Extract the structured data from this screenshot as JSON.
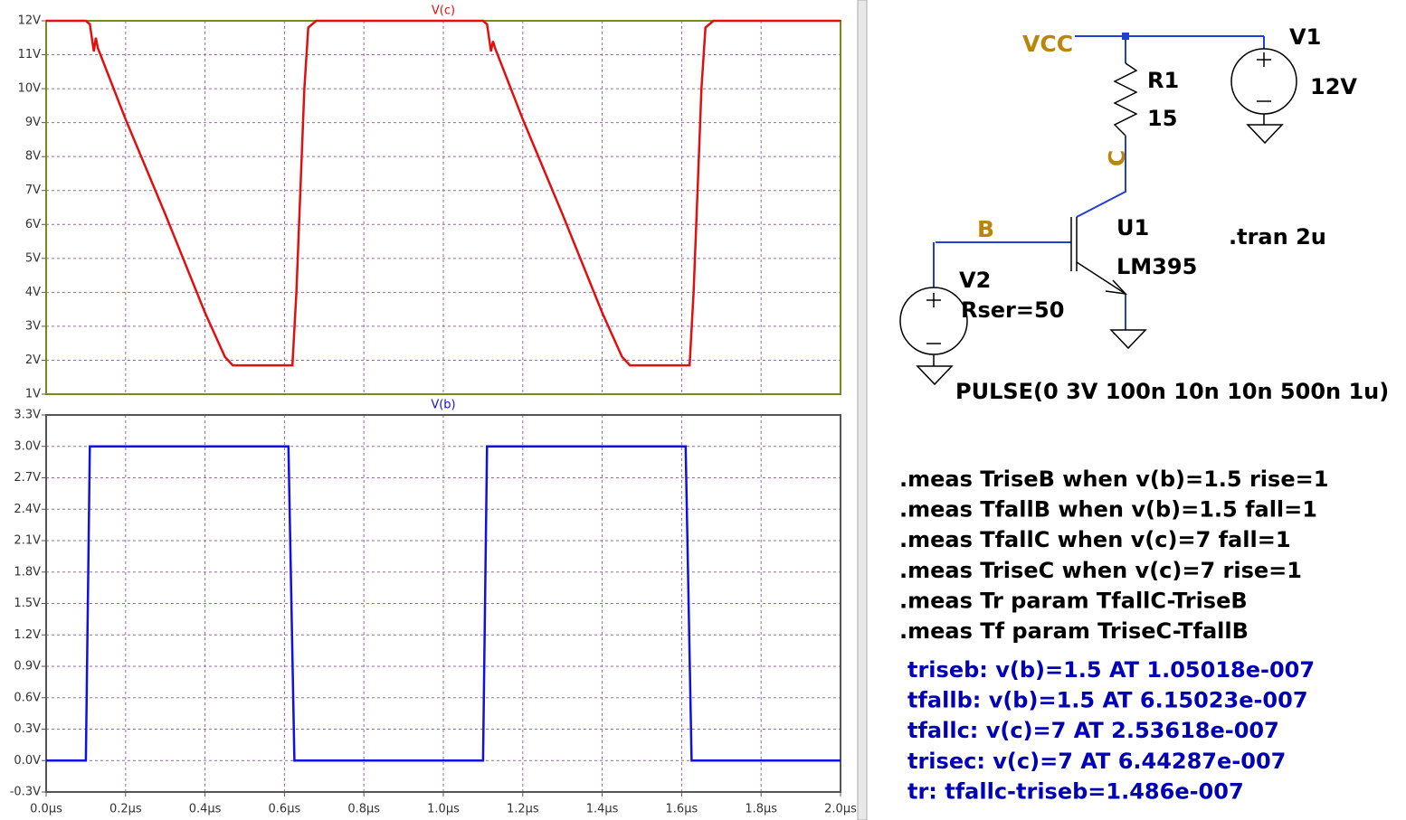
{
  "chart_data": [
    {
      "type": "line",
      "title": "V(c)",
      "color": "#e01010",
      "grid": true,
      "x": [
        0,
        0.1,
        0.11,
        0.12,
        0.125,
        0.13,
        0.2,
        0.3,
        0.4,
        0.45,
        0.47,
        0.62,
        0.63,
        0.64,
        0.65,
        0.66,
        0.68,
        1.1,
        1.11,
        1.12,
        1.125,
        1.13,
        1.2,
        1.3,
        1.4,
        1.45,
        1.47,
        1.62,
        1.63,
        1.64,
        1.65,
        1.66,
        1.68,
        2.0
      ],
      "values": [
        12,
        12,
        11.9,
        11.1,
        11.5,
        11.2,
        9.1,
        6.3,
        3.4,
        2.1,
        1.85,
        1.85,
        4,
        7,
        10,
        11.8,
        12,
        12,
        11.9,
        11.1,
        11.4,
        11.2,
        9.1,
        6.3,
        3.4,
        2.1,
        1.85,
        1.85,
        4,
        7,
        10,
        11.8,
        12,
        12
      ],
      "xlim": [
        0,
        2
      ],
      "xticks": [
        0,
        0.2,
        0.4,
        0.6,
        0.8,
        1.0,
        1.2,
        1.4,
        1.6,
        1.8,
        2.0
      ],
      "ylim": [
        1,
        12
      ],
      "yticks": [
        {
          "value": 1,
          "label": "1V"
        },
        {
          "value": 2,
          "label": "2V"
        },
        {
          "value": 3,
          "label": "3V"
        },
        {
          "value": 4,
          "label": "4V"
        },
        {
          "value": 5,
          "label": "5V"
        },
        {
          "value": 6,
          "label": "6V"
        },
        {
          "value": 7,
          "label": "7V"
        },
        {
          "value": 8,
          "label": "8V"
        },
        {
          "value": 9,
          "label": "9V"
        },
        {
          "value": 10,
          "label": "10V"
        },
        {
          "value": 11,
          "label": "11V"
        },
        {
          "value": 12,
          "label": "12V"
        }
      ]
    },
    {
      "type": "line",
      "title": "V(b)",
      "color": "#1010e0",
      "grid": true,
      "x": [
        0,
        0.1,
        0.11,
        0.61,
        0.625,
        1.1,
        1.11,
        1.61,
        1.625,
        2.0
      ],
      "values": [
        0,
        0,
        3,
        3,
        0,
        0,
        3,
        3,
        0,
        0
      ],
      "xlim": [
        0,
        2
      ],
      "xticks": [
        {
          "value": 0,
          "label": "0.0µs"
        },
        {
          "value": 0.2,
          "label": "0.2µs"
        },
        {
          "value": 0.4,
          "label": "0.4µs"
        },
        {
          "value": 0.6,
          "label": "0.6µs"
        },
        {
          "value": 0.8,
          "label": "0.8µs"
        },
        {
          "value": 1.0,
          "label": "1.0µs"
        },
        {
          "value": 1.2,
          "label": "1.2µs"
        },
        {
          "value": 1.4,
          "label": "1.4µs"
        },
        {
          "value": 1.6,
          "label": "1.6µs"
        },
        {
          "value": 1.8,
          "label": "1.8µs"
        },
        {
          "value": 2.0,
          "label": "2.0µs"
        }
      ],
      "ylim": [
        -0.3,
        3.3
      ],
      "yticks": [
        {
          "value": -0.3,
          "label": "-0.3V"
        },
        {
          "value": 0,
          "label": "0.0V"
        },
        {
          "value": 0.3,
          "label": "0.3V"
        },
        {
          "value": 0.6,
          "label": "0.6V"
        },
        {
          "value": 0.9,
          "label": "0.9V"
        },
        {
          "value": 1.2,
          "label": "1.2V"
        },
        {
          "value": 1.5,
          "label": "1.5V"
        },
        {
          "value": 1.8,
          "label": "1.8V"
        },
        {
          "value": 2.1,
          "label": "2.1V"
        },
        {
          "value": 2.4,
          "label": "2.4V"
        },
        {
          "value": 2.7,
          "label": "2.7V"
        },
        {
          "value": 3.0,
          "label": "3.0V"
        },
        {
          "value": 3.3,
          "label": "3.3V"
        }
      ]
    }
  ],
  "schematic": {
    "net_vcc": "VCC",
    "net_c": "C",
    "net_b": "B",
    "r1_name": "R1",
    "r1_value": "15",
    "v1_name": "V1",
    "v1_value": "12V",
    "u1_name": "U1",
    "u1_model": "LM395",
    "v2_name": "V2",
    "v2_rser": "Rser=50",
    "v2_value": "PULSE(0 3V 100n 10n 10n 500n 1u)",
    "tran": ".tran 2u"
  },
  "measure_directives": [
    ".meas TriseB when v(b)=1.5 rise=1",
    ".meas TfallB when v(b)=1.5 fall=1",
    ".meas TfallC when v(c)=7 fall=1",
    ".meas TriseC when v(c)=7  rise=1",
    ".meas Tr param TfallC-TriseB",
    ".meas Tf param TriseC-TfallB"
  ],
  "measure_results": [
    "triseb: v(b)=1.5 AT 1.05018e-007",
    "tfallb: v(b)=1.5 AT 6.15023e-007",
    "tfallc: v(c)=7 AT 2.53618e-007",
    "trisec: v(c)=7 AT 6.44287e-007",
    "tr: tfallc-triseb=1.486e-007"
  ]
}
